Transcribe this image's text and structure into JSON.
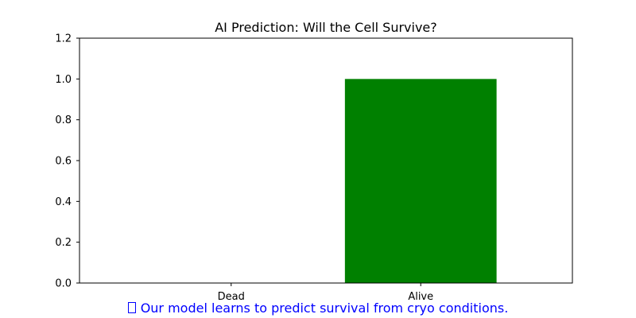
{
  "chart_data": {
    "type": "bar",
    "title": "AI Prediction: Will the Cell Survive?",
    "categories": [
      "Dead",
      "Alive"
    ],
    "values": [
      0,
      1.0
    ],
    "bar_colors": [
      "#008000",
      "#008000"
    ],
    "xlabel": "",
    "ylabel": "",
    "ylim": [
      0,
      1.2
    ],
    "yticks": [
      0.0,
      0.2,
      0.4,
      0.6,
      0.8,
      1.0,
      1.2
    ],
    "ytick_labels": [
      "0.0",
      "0.2",
      "0.4",
      "0.6",
      "0.8",
      "1.0",
      "1.2"
    ],
    "grid": false,
    "legend": false
  },
  "caption": {
    "icon": "missing-glyph-icon",
    "text": "Our model learns to predict survival from cryo conditions.",
    "color": "#0000ff"
  }
}
